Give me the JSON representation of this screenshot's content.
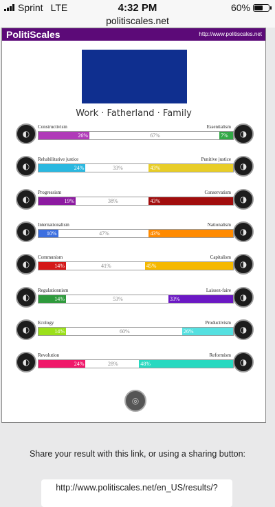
{
  "status_bar": {
    "carrier": "Sprint",
    "network": "LTE",
    "time": "4:32 PM",
    "battery_percent": "60%",
    "battery_level": 0.6
  },
  "browser": {
    "url": "politiscales.net"
  },
  "site": {
    "logo": "PolitiScales",
    "link": "http://www.politiscales.net",
    "header_color": "#5c0a78",
    "flag_color": "#0f2f8f",
    "slogan": "Work · Fatherland · Family"
  },
  "axes": [
    {
      "left_label": "Constructivism",
      "right_label": "Essentialism",
      "left_value": 26,
      "mid_value": 67,
      "right_value": 7,
      "left_color": "#b03ab8",
      "right_color": "#32a846",
      "left_icon": "constructivism-icon",
      "right_icon": "essentialism-icon",
      "left_text": "26%",
      "mid_text": "67%",
      "right_text": "7%"
    },
    {
      "left_label": "Rehabilitative justice",
      "right_label": "Punitive justice",
      "left_value": 24,
      "mid_value": 33,
      "right_value": 43,
      "left_color": "#2ab8e0",
      "right_color": "#e8cd28",
      "left_icon": "handshake-icon",
      "right_icon": "prison-bars-icon",
      "left_text": "24%",
      "mid_text": "33%",
      "right_text": "43%"
    },
    {
      "left_label": "Progressism",
      "right_label": "Conservatism",
      "left_value": 19,
      "mid_value": 38,
      "right_value": 43,
      "left_color": "#8c1aa0",
      "right_color": "#a10d0d",
      "left_icon": "progressism-icon",
      "right_icon": "conservatism-icon",
      "left_text": "19%",
      "mid_text": "38%",
      "right_text": "43%"
    },
    {
      "left_label": "Internationalism",
      "right_label": "Nationalism",
      "left_value": 10,
      "mid_value": 47,
      "right_value": 43,
      "left_color": "#3c6fe0",
      "right_color": "#ff8a00",
      "left_icon": "globe-icon",
      "right_icon": "flag-icon",
      "left_text": "10%",
      "mid_text": "47%",
      "right_text": "43%"
    },
    {
      "left_label": "Communism",
      "right_label": "Capitalism",
      "left_value": 14,
      "mid_value": 41,
      "right_value": 45,
      "left_color": "#d41818",
      "right_color": "#f5b800",
      "left_icon": "hammer-sickle-icon",
      "right_icon": "capitalism-icon",
      "left_text": "14%",
      "mid_text": "41%",
      "right_text": "45%"
    },
    {
      "left_label": "Regulationnism",
      "right_label": "Laissez-faire",
      "left_value": 14,
      "mid_value": 53,
      "right_value": 33,
      "left_color": "#2e9a3c",
      "right_color": "#6b18c4",
      "left_icon": "regulation-icon",
      "right_icon": "laissez-faire-icon",
      "left_text": "14%",
      "mid_text": "53%",
      "right_text": "33%"
    },
    {
      "left_label": "Ecology",
      "right_label": "Productivism",
      "left_value": 14,
      "mid_value": 60,
      "right_value": 26,
      "left_color": "#9be01a",
      "right_color": "#55e0e0",
      "left_icon": "tree-icon",
      "right_icon": "factory-icon",
      "left_text": "14%",
      "mid_text": "60%",
      "right_text": "26%"
    },
    {
      "left_label": "Revolution",
      "right_label": "Reformism",
      "left_value": 24,
      "mid_value": 28,
      "right_value": 48,
      "left_color": "#f0186a",
      "right_color": "#28d9c0",
      "left_icon": "revolution-icon",
      "right_icon": "reformism-icon",
      "left_text": "24%",
      "mid_text": "28%",
      "right_text": "48%"
    }
  ],
  "share": {
    "text": "Share your result with this link, or using a sharing button:",
    "link": "http://www.politiscales.net/en_US/results/?"
  }
}
